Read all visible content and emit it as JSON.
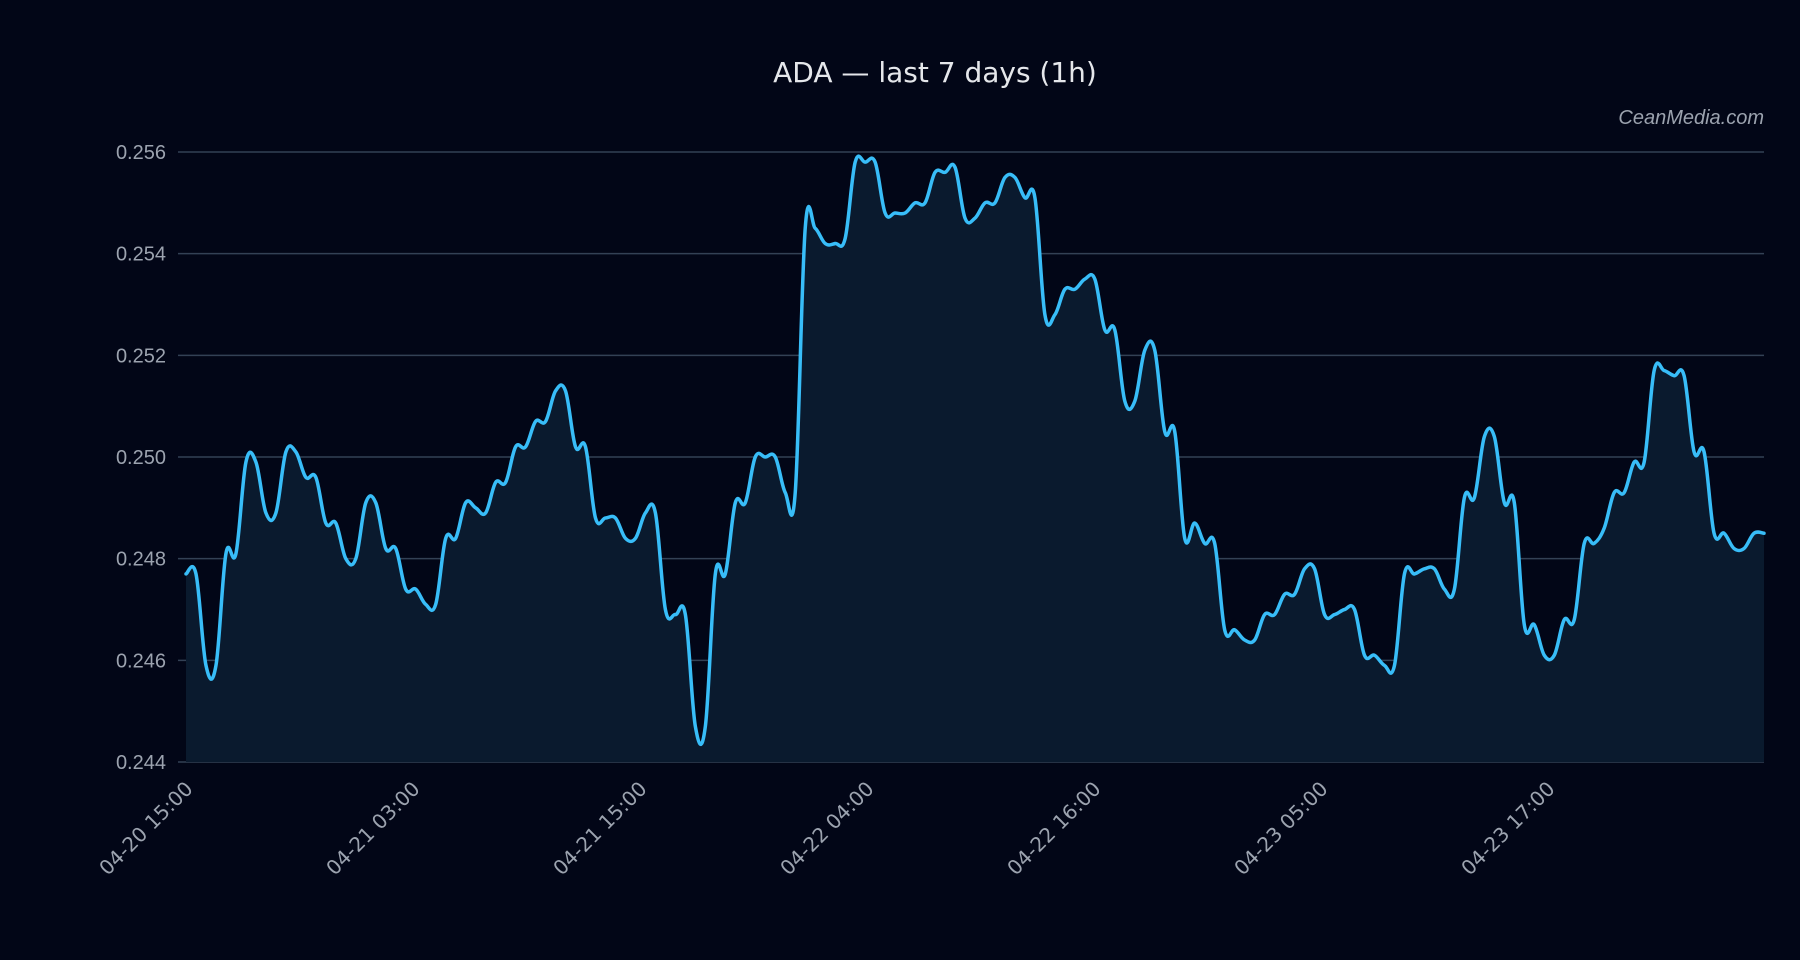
{
  "header": {
    "title": "ADA — last 7 days (1h)",
    "watermark": "CeanMedia.com"
  },
  "colors": {
    "background": "#020617",
    "line": "#38bdf8",
    "fill": "#0a1a2e",
    "grid": "#334155",
    "text": "#9ca3af",
    "title": "#e5e7eb"
  },
  "chart_data": {
    "type": "area",
    "title": "ADA — last 7 days (1h)",
    "xlabel": "",
    "ylabel": "",
    "ylim": [
      0.244,
      0.256
    ],
    "yticks": [
      "0.244",
      "0.246",
      "0.248",
      "0.250",
      "0.252",
      "0.254",
      "0.256"
    ],
    "xticks": [
      "04-20 15:00",
      "04-21 03:00",
      "04-21 15:00",
      "04-22 04:00",
      "04-22 16:00",
      "04-23 05:00",
      "04-23 17:00"
    ],
    "grid": true,
    "legend": "none",
    "series": [
      {
        "name": "ADA",
        "values": [
          0.2477,
          0.2477,
          0.2459,
          0.2459,
          0.2481,
          0.2481,
          0.2499,
          0.2499,
          0.2489,
          0.2489,
          0.2501,
          0.2501,
          0.2496,
          0.2496,
          0.2487,
          0.2487,
          0.248,
          0.248,
          0.2491,
          0.2491,
          0.2482,
          0.2482,
          0.2474,
          0.2474,
          0.2471,
          0.2471,
          0.2484,
          0.2484,
          0.2491,
          0.249,
          0.2489,
          0.2495,
          0.2495,
          0.2502,
          0.2502,
          0.2507,
          0.2507,
          0.2513,
          0.2513,
          0.2502,
          0.2502,
          0.2488,
          0.2488,
          0.2488,
          0.2484,
          0.2484,
          0.2489,
          0.2489,
          0.247,
          0.2469,
          0.2469,
          0.2447,
          0.2447,
          0.2477,
          0.2477,
          0.2491,
          0.2491,
          0.25,
          0.25,
          0.25,
          0.2493,
          0.2493,
          0.2545,
          0.2545,
          0.2542,
          0.2542,
          0.2543,
          0.2558,
          0.2558,
          0.2558,
          0.2548,
          0.2548,
          0.2548,
          0.255,
          0.255,
          0.2556,
          0.2556,
          0.2557,
          0.2547,
          0.2547,
          0.255,
          0.255,
          0.2555,
          0.2555,
          0.2551,
          0.2551,
          0.2528,
          0.2528,
          0.2533,
          0.2533,
          0.2535,
          0.2535,
          0.2525,
          0.2525,
          0.2511,
          0.2511,
          0.2521,
          0.2521,
          0.2505,
          0.2505,
          0.2484,
          0.2487,
          0.2483,
          0.2483,
          0.2466,
          0.2466,
          0.2464,
          0.2464,
          0.2469,
          0.2469,
          0.2473,
          0.2473,
          0.2478,
          0.2478,
          0.2469,
          0.2469,
          0.247,
          0.247,
          0.2461,
          0.2461,
          0.2459,
          0.2459,
          0.2477,
          0.2477,
          0.2478,
          0.2478,
          0.2474,
          0.2474,
          0.2492,
          0.2492,
          0.2504,
          0.2504,
          0.2491,
          0.2491,
          0.2467,
          0.2467,
          0.2461,
          0.2461,
          0.2468,
          0.2468,
          0.2483,
          0.2483,
          0.2486,
          0.2493,
          0.2493,
          0.2499,
          0.2499,
          0.2517,
          0.2517,
          0.2516,
          0.2516,
          0.2501,
          0.2501,
          0.2485,
          0.2485,
          0.2482,
          0.2482,
          0.2485,
          0.2485
        ]
      }
    ]
  }
}
